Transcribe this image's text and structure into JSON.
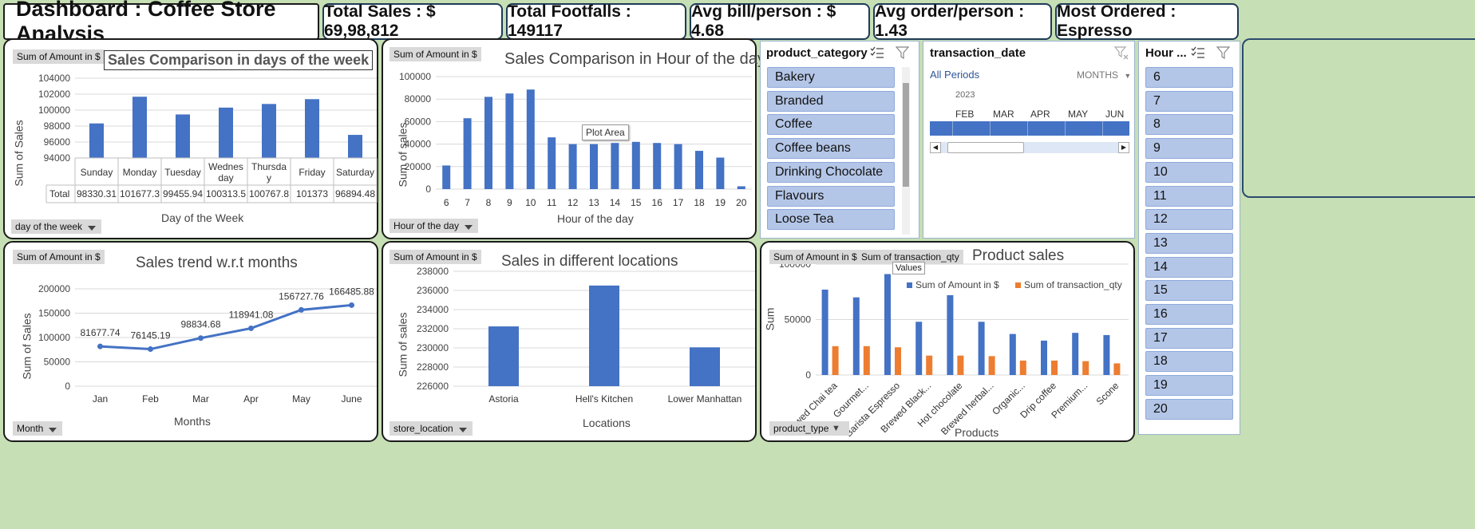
{
  "header": {
    "title": "Dashboard : Coffee Store Analysis",
    "kpis": [
      "Total Sales : $ 69,98,812",
      "Total Footfalls : 149117",
      "Avg bill/person : $ 4.68",
      "Avg order/person : 1.43",
      "Most Ordered : Espresso"
    ]
  },
  "colors": {
    "bar": "#4472c4",
    "bar2": "#ed7d31",
    "background": "#c6dfb4",
    "slicer_item": "#b4c6e7"
  },
  "charts": {
    "days": {
      "value_field": "Sum of Amount in $",
      "title": "Sales Comparison in days of the week",
      "ylabel": "Sum of Sales",
      "xlabel": "Day of the Week",
      "axis_field": "day of the week",
      "table_label": "Total",
      "categories_display": [
        "Sunday",
        "Monday",
        "Tuesday",
        "Wednes day",
        "Thursda y",
        "Friday",
        "Saturday"
      ],
      "totals_display": [
        "98330.31",
        "101677.3",
        "99455.94",
        "100313.5",
        "100767.8",
        "101373",
        "96894.48"
      ]
    },
    "hours": {
      "value_field": "Sum of Amount in $",
      "title": "Sales Comparison in Hour of the day",
      "ylabel": "Sum of sales",
      "xlabel": "Hour of the day",
      "axis_field": "Hour of the day",
      "tooltip": "Plot Area"
    },
    "months": {
      "value_field": "Sum of Amount in $",
      "title": "Sales trend w.r.t months",
      "ylabel": "Sum of Sales",
      "xlabel": "Months",
      "axis_field": "Month",
      "labels_display": [
        "81677.74",
        "76145.19",
        "98834.68",
        "118941.08",
        "156727.76",
        "166485.88"
      ]
    },
    "locations": {
      "value_field": "Sum of Amount in $",
      "title": "Sales in different locations",
      "ylabel": "Sum of sales",
      "xlabel": "Locations",
      "axis_field": "store_location"
    },
    "products": {
      "value_field": "Sum of Amount in $",
      "value_field2": "Sum of transaction_qty",
      "values_label": "Values",
      "title": "Product sales",
      "ylabel": "Sum",
      "xlabel": "Products",
      "axis_field": "product_type"
    }
  },
  "slicers": {
    "category": {
      "header": "product_category",
      "items": [
        "Bakery",
        "Branded",
        "Coffee",
        "Coffee beans",
        "Drinking Chocolate",
        "Flavours",
        "Loose Tea"
      ]
    },
    "date": {
      "header": "transaction_date",
      "period": "All Periods",
      "level": "MONTHS",
      "year": "2023",
      "months": [
        "FEB",
        "MAR",
        "APR",
        "MAY",
        "JUN"
      ]
    },
    "hour": {
      "header": "Hour ...",
      "items": [
        "6",
        "7",
        "8",
        "9",
        "10",
        "11",
        "12",
        "13",
        "14",
        "15",
        "16",
        "17",
        "18",
        "19",
        "20"
      ]
    }
  },
  "chart_data": [
    {
      "type": "bar",
      "title": "Sales Comparison in days of the week",
      "xlabel": "Day of the Week",
      "ylabel": "Sum of Sales",
      "categories": [
        "Sunday",
        "Monday",
        "Tuesday",
        "Wednesday",
        "Thursday",
        "Friday",
        "Saturday"
      ],
      "values": [
        98330.31,
        101677.3,
        99455.94,
        100313.5,
        100767.8,
        101373,
        96894.48
      ],
      "ylim": [
        94000,
        104000
      ],
      "yticks": [
        94000,
        96000,
        98000,
        100000,
        102000,
        104000
      ],
      "grid": true
    },
    {
      "type": "bar",
      "title": "Sales Comparison in Hour of the day",
      "xlabel": "Hour of the day",
      "ylabel": "Sum of sales",
      "categories": [
        "6",
        "7",
        "8",
        "9",
        "10",
        "11",
        "12",
        "13",
        "14",
        "15",
        "16",
        "17",
        "18",
        "19",
        "20"
      ],
      "values": [
        21000,
        63000,
        82000,
        85000,
        88500,
        46000,
        40000,
        40000,
        41000,
        42000,
        41000,
        40000,
        34000,
        28000,
        2500
      ],
      "ylim": [
        0,
        100000
      ],
      "yticks": [
        0,
        20000,
        40000,
        60000,
        80000,
        100000
      ],
      "grid": true
    },
    {
      "type": "line",
      "title": "Sales trend w.r.t months",
      "xlabel": "Months",
      "ylabel": "Sum of Sales",
      "categories": [
        "Jan",
        "Feb",
        "Mar",
        "Apr",
        "May",
        "June"
      ],
      "values": [
        81677.74,
        76145.19,
        98834.68,
        118941.08,
        156727.76,
        166485.88
      ],
      "ylim": [
        0,
        200000
      ],
      "yticks": [
        0,
        50000,
        100000,
        150000,
        200000
      ],
      "grid": true
    },
    {
      "type": "bar",
      "title": "Sales in different locations",
      "xlabel": "Locations",
      "ylabel": "Sum of sales",
      "categories": [
        "Astoria",
        "Hell's Kitchen",
        "Lower Manhattan"
      ],
      "values": [
        232243.91,
        236511.17,
        230057.25
      ],
      "ylim": [
        226000,
        238000
      ],
      "yticks": [
        226000,
        228000,
        230000,
        232000,
        234000,
        236000,
        238000
      ],
      "grid": true
    },
    {
      "type": "bar",
      "title": "Product sales",
      "xlabel": "Products",
      "ylabel": "Sum",
      "categories": [
        "Brewed Chai tea",
        "Gourmet...",
        "Barista Espresso",
        "Brewed Black...",
        "Hot chocolate",
        "Brewed herbal...",
        "Organic...",
        "Drip coffee",
        "Premium...",
        "Scone"
      ],
      "series": [
        {
          "name": "Sum of Amount in $",
          "values": [
            77000,
            70000,
            91000,
            48000,
            72000,
            48000,
            37000,
            31000,
            38000,
            36000
          ]
        },
        {
          "name": "Sum of transaction_qty",
          "values": [
            26000,
            26000,
            25000,
            17500,
            17500,
            17000,
            13000,
            13000,
            12500,
            10500
          ]
        }
      ],
      "ylim": [
        0,
        100000
      ],
      "yticks": [
        0,
        50000,
        100000
      ],
      "legend": "top"
    }
  ]
}
